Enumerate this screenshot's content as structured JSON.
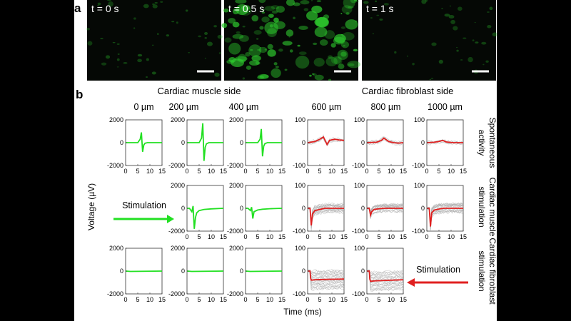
{
  "panel_a": {
    "label": "a",
    "frames": [
      {
        "time_label": "t = 0 s",
        "brightness": 0.15
      },
      {
        "time_label": "t = 0.5 s",
        "brightness": 0.8
      },
      {
        "time_label": "t = 1 s",
        "brightness": 0.12
      }
    ]
  },
  "panel_b": {
    "label": "b",
    "group_titles": [
      "Cardiac muscle side",
      "Cardiac fibroblast side"
    ],
    "column_titles": [
      "0 µm",
      "200 µm",
      "400 µm",
      "600 µm",
      "800 µm",
      "1000 µm"
    ],
    "row_titles": [
      [
        "Spontaneous",
        "activity"
      ],
      [
        "Cardiac muscle",
        "stimulation"
      ],
      [
        "Cardiac fibroblast",
        "stimulation"
      ]
    ],
    "stimulation_labels": [
      "Stimulation",
      "Stimulation"
    ],
    "ylabel": "Voltage (µV)",
    "xlabel": "Time (ms)"
  },
  "colors": {
    "muscle_trace": "#22e022",
    "fibroblast_trace": "#e02020",
    "background_trace": "#b0b0b0",
    "fluorescence": "#2ecc2e"
  },
  "chart_data": [
    {
      "type": "line",
      "row": 0,
      "col": 0,
      "xlim": [
        0,
        15
      ],
      "ylim": [
        -2000,
        2000
      ],
      "xticks": [
        0,
        5,
        10,
        15
      ],
      "yticks": [
        2000,
        0,
        -2000
      ],
      "color": "#22e022",
      "series": [
        {
          "x": [
            0,
            5,
            6,
            6.5,
            7,
            7.5,
            8,
            9,
            15
          ],
          "y": [
            0,
            0,
            300,
            900,
            -800,
            -200,
            -50,
            0,
            0
          ]
        }
      ],
      "gray_traces": 0
    },
    {
      "type": "line",
      "row": 0,
      "col": 1,
      "xlim": [
        0,
        15
      ],
      "ylim": [
        -2000,
        2000
      ],
      "xticks": [
        0,
        5,
        10,
        15
      ],
      "yticks": [
        2000,
        0,
        -2000
      ],
      "color": "#22e022",
      "series": [
        {
          "x": [
            0,
            5,
            6,
            6.5,
            7,
            7.5,
            8,
            9,
            15
          ],
          "y": [
            0,
            0,
            400,
            1700,
            -1600,
            -400,
            -100,
            0,
            0
          ]
        }
      ],
      "gray_traces": 0
    },
    {
      "type": "line",
      "row": 0,
      "col": 2,
      "xlim": [
        0,
        15
      ],
      "ylim": [
        -2000,
        2000
      ],
      "xticks": [
        0,
        5,
        10,
        15
      ],
      "yticks": [
        2000,
        0,
        -2000
      ],
      "color": "#22e022",
      "series": [
        {
          "x": [
            0,
            5,
            6,
            6.5,
            7,
            7.5,
            8,
            9,
            15
          ],
          "y": [
            0,
            0,
            300,
            1200,
            -1200,
            -300,
            -80,
            0,
            0
          ]
        }
      ],
      "gray_traces": 0
    },
    {
      "type": "line",
      "row": 0,
      "col": 3,
      "xlim": [
        0,
        15
      ],
      "ylim": [
        -100,
        100
      ],
      "xticks": [
        0,
        5,
        10,
        15
      ],
      "yticks": [
        100,
        0,
        -100
      ],
      "color": "#e02020",
      "series": [
        {
          "x": [
            0,
            3,
            5,
            6.5,
            8,
            9,
            11,
            13,
            15
          ],
          "y": [
            0,
            5,
            15,
            25,
            -8,
            10,
            15,
            12,
            10
          ]
        }
      ],
      "gray_traces": 8
    },
    {
      "type": "line",
      "row": 0,
      "col": 4,
      "xlim": [
        0,
        15
      ],
      "ylim": [
        -100,
        100
      ],
      "xticks": [
        0,
        5,
        10,
        15
      ],
      "yticks": [
        100,
        0,
        -100
      ],
      "color": "#e02020",
      "series": [
        {
          "x": [
            0,
            4,
            6,
            7,
            9,
            11,
            13,
            15
          ],
          "y": [
            0,
            2,
            10,
            20,
            5,
            0,
            -2,
            0
          ]
        }
      ],
      "gray_traces": 8
    },
    {
      "type": "line",
      "row": 0,
      "col": 5,
      "xlim": [
        0,
        15
      ],
      "ylim": [
        -100,
        100
      ],
      "xticks": [
        0,
        5,
        10,
        15
      ],
      "yticks": [
        100,
        0,
        -100
      ],
      "color": "#e02020",
      "series": [
        {
          "x": [
            0,
            3,
            5,
            6.5,
            8,
            11,
            15
          ],
          "y": [
            0,
            2,
            5,
            10,
            3,
            0,
            0
          ]
        }
      ],
      "gray_traces": 8
    },
    {
      "type": "line",
      "row": 1,
      "col": 0,
      "empty": true
    },
    {
      "type": "line",
      "row": 1,
      "col": 1,
      "xlim": [
        0,
        15
      ],
      "ylim": [
        -2000,
        2000
      ],
      "xticks": [
        0,
        5,
        10,
        15
      ],
      "yticks": [
        2000,
        0,
        -2000
      ],
      "color": "#22e022",
      "series": [
        {
          "x": [
            0,
            1,
            2,
            2.5,
            3,
            3.5,
            4,
            5,
            7,
            10,
            15
          ],
          "y": [
            0,
            0,
            -300,
            200,
            -1800,
            -800,
            -400,
            -200,
            -100,
            -50,
            0
          ]
        }
      ],
      "gray_traces": 0
    },
    {
      "type": "line",
      "row": 1,
      "col": 2,
      "xlim": [
        0,
        15
      ],
      "ylim": [
        -2000,
        2000
      ],
      "xticks": [
        0,
        5,
        10,
        15
      ],
      "yticks": [
        2000,
        0,
        -2000
      ],
      "color": "#22e022",
      "series": [
        {
          "x": [
            0,
            1,
            2,
            2.5,
            3,
            3.5,
            5,
            7,
            10,
            15
          ],
          "y": [
            0,
            0,
            -200,
            100,
            -900,
            -300,
            -150,
            -80,
            -40,
            0
          ]
        }
      ],
      "gray_traces": 0
    },
    {
      "type": "line",
      "row": 1,
      "col": 3,
      "xlim": [
        0,
        15
      ],
      "ylim": [
        -100,
        100
      ],
      "xticks": [
        0,
        5,
        10,
        15
      ],
      "yticks": [
        100,
        0,
        -100
      ],
      "color": "#e02020",
      "series": [
        {
          "x": [
            0,
            1,
            1.5,
            2,
            3,
            5,
            7,
            10,
            15
          ],
          "y": [
            0,
            0,
            -75,
            -25,
            -10,
            -5,
            0,
            0,
            0
          ]
        }
      ],
      "gray_traces": 25
    },
    {
      "type": "line",
      "row": 1,
      "col": 4,
      "xlim": [
        0,
        15
      ],
      "ylim": [
        -100,
        100
      ],
      "xticks": [
        0,
        5,
        10,
        15
      ],
      "yticks": [
        100,
        0,
        -100
      ],
      "color": "#e02020",
      "series": [
        {
          "x": [
            0,
            1,
            1.5,
            2,
            3,
            5,
            7,
            10,
            15
          ],
          "y": [
            0,
            0,
            -30,
            -15,
            -5,
            -2,
            0,
            0,
            0
          ]
        }
      ],
      "gray_traces": 25
    },
    {
      "type": "line",
      "row": 1,
      "col": 5,
      "xlim": [
        0,
        15
      ],
      "ylim": [
        -100,
        100
      ],
      "xticks": [
        0,
        5,
        10,
        15
      ],
      "yticks": [
        100,
        0,
        -100
      ],
      "color": "#e02020",
      "series": [
        {
          "x": [
            0,
            1,
            1.5,
            2,
            3,
            5,
            7,
            10,
            15
          ],
          "y": [
            0,
            0,
            -80,
            -20,
            -8,
            -3,
            0,
            0,
            0
          ]
        }
      ],
      "gray_traces": 25
    },
    {
      "type": "line",
      "row": 2,
      "col": 0,
      "xlim": [
        0,
        15
      ],
      "ylim": [
        -2000,
        2000
      ],
      "xticks": [
        0,
        5,
        10,
        15
      ],
      "yticks": [
        2000,
        0,
        -2000
      ],
      "color": "#22e022",
      "series": [
        {
          "x": [
            0,
            2,
            15
          ],
          "y": [
            0,
            -30,
            0
          ]
        }
      ],
      "gray_traces": 0
    },
    {
      "type": "line",
      "row": 2,
      "col": 1,
      "xlim": [
        0,
        15
      ],
      "ylim": [
        -2000,
        2000
      ],
      "xticks": [
        0,
        5,
        10,
        15
      ],
      "yticks": [
        2000,
        0,
        -2000
      ],
      "color": "#22e022",
      "series": [
        {
          "x": [
            0,
            2,
            15
          ],
          "y": [
            0,
            -30,
            0
          ]
        }
      ],
      "gray_traces": 0
    },
    {
      "type": "line",
      "row": 2,
      "col": 2,
      "xlim": [
        0,
        15
      ],
      "ylim": [
        -2000,
        2000
      ],
      "xticks": [
        0,
        5,
        10,
        15
      ],
      "yticks": [
        2000,
        0,
        -2000
      ],
      "color": "#22e022",
      "series": [
        {
          "x": [
            0,
            2,
            15
          ],
          "y": [
            0,
            -30,
            0
          ]
        }
      ],
      "gray_traces": 0
    },
    {
      "type": "line",
      "row": 2,
      "col": 3,
      "xlim": [
        0,
        15
      ],
      "ylim": [
        -100,
        100
      ],
      "xticks": [
        0,
        5,
        10,
        15
      ],
      "yticks": [
        100,
        0,
        -100
      ],
      "color": "#e02020",
      "series": [
        {
          "x": [
            0,
            1,
            1.2,
            1.5,
            3,
            6,
            10,
            15
          ],
          "y": [
            0,
            0,
            -30,
            -40,
            -38,
            -37,
            -36,
            -35
          ]
        }
      ],
      "gray_traces": 30
    },
    {
      "type": "line",
      "row": 2,
      "col": 4,
      "xlim": [
        0,
        15
      ],
      "ylim": [
        -100,
        100
      ],
      "xticks": [
        0,
        5,
        10,
        15
      ],
      "yticks": [
        100,
        0,
        -100
      ],
      "color": "#e02020",
      "series": [
        {
          "x": [
            0,
            1,
            1.2,
            1.5,
            3,
            6,
            10,
            15
          ],
          "y": [
            0,
            0,
            -35,
            -45,
            -43,
            -42,
            -40,
            -38
          ]
        }
      ],
      "gray_traces": 30
    },
    {
      "type": "line",
      "row": 2,
      "col": 5,
      "empty": true
    }
  ]
}
